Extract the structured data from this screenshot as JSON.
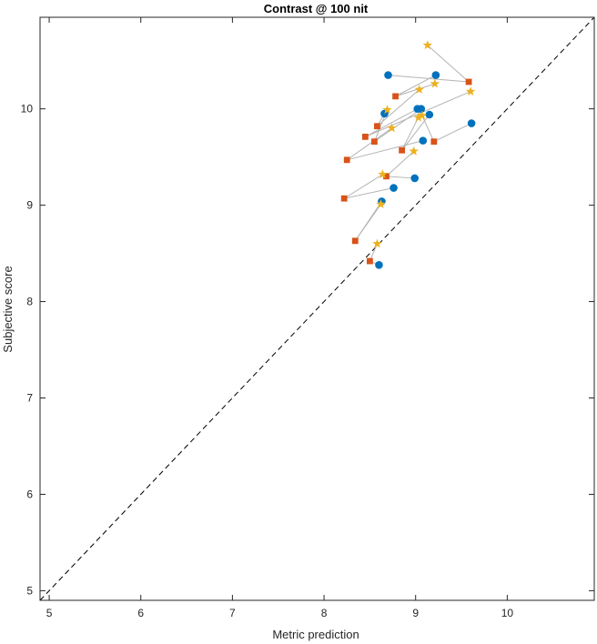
{
  "chart_data": {
    "type": "scatter",
    "title": "Contrast @ 100 nit",
    "xlabel": "Metric prediction",
    "ylabel": "Subjective score",
    "xlim": [
      4.9,
      10.95
    ],
    "ylim": [
      4.9,
      10.95
    ],
    "xticks": [
      5,
      6,
      7,
      8,
      9,
      10
    ],
    "yticks": [
      5,
      6,
      7,
      8,
      9,
      10
    ],
    "grid": false,
    "reference_line": {
      "style": "dashed",
      "from": [
        4.9,
        4.9
      ],
      "to": [
        10.95,
        10.95
      ],
      "color": "#000000"
    },
    "series": [
      {
        "marker": "circle",
        "color": "#0072bd",
        "x": [
          8.7,
          9.22,
          8.66,
          9.02,
          9.06,
          9.15,
          9.61,
          9.08,
          8.99,
          8.76,
          8.63,
          8.6
        ],
        "y": [
          10.35,
          10.35,
          9.95,
          10.0,
          10.0,
          9.94,
          9.85,
          9.67,
          9.28,
          9.18,
          9.04,
          8.38
        ]
      },
      {
        "marker": "square",
        "color": "#d95319",
        "x": [
          9.58,
          8.78,
          8.58,
          8.45,
          8.55,
          8.85,
          9.2,
          8.25,
          8.68,
          8.22,
          8.34,
          8.5
        ],
        "y": [
          10.28,
          10.13,
          9.82,
          9.71,
          9.66,
          9.57,
          9.66,
          9.47,
          9.3,
          9.07,
          8.63,
          8.42
        ]
      },
      {
        "marker": "star",
        "color": "#edb120",
        "x": [
          9.13,
          9.21,
          9.04,
          9.6,
          8.69,
          9.03,
          9.07,
          8.74,
          8.98,
          8.64,
          8.62,
          8.58
        ],
        "y": [
          10.66,
          10.26,
          10.2,
          10.18,
          9.99,
          9.91,
          9.93,
          9.8,
          9.56,
          9.32,
          9.01,
          8.6
        ]
      }
    ],
    "connector_color": "#b4b4b4"
  }
}
